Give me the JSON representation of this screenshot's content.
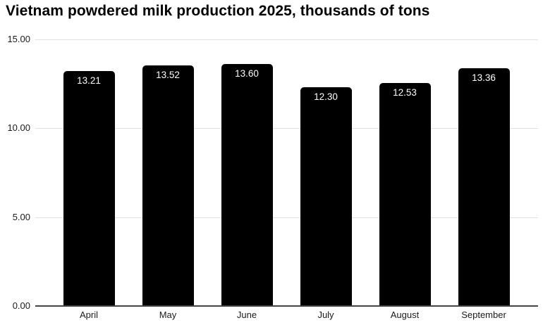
{
  "chart_data": {
    "type": "bar",
    "title": "Vietnam powdered milk production 2025, thousands of tons",
    "categories": [
      "April",
      "May",
      "June",
      "July",
      "August",
      "September"
    ],
    "values": [
      13.21,
      13.52,
      13.6,
      12.3,
      12.53,
      13.36
    ],
    "value_labels": [
      "13.21",
      "13.52",
      "13.60",
      "12.30",
      "12.53",
      "13.36"
    ],
    "xlabel": "",
    "ylabel": "",
    "ylim": [
      0,
      15
    ],
    "y_ticks": [
      0,
      5,
      10,
      15
    ],
    "y_tick_labels": [
      "0.00",
      "5.00",
      "10.00",
      "15.00"
    ],
    "grid": true,
    "legend": false,
    "colors": {
      "bar": "#000000",
      "bar_value_text": "#ffffff",
      "gridline": "#e0e0e0",
      "axis_baseline": "#444444",
      "tick_text": "#1a1a1a",
      "title_text": "#000000"
    }
  }
}
